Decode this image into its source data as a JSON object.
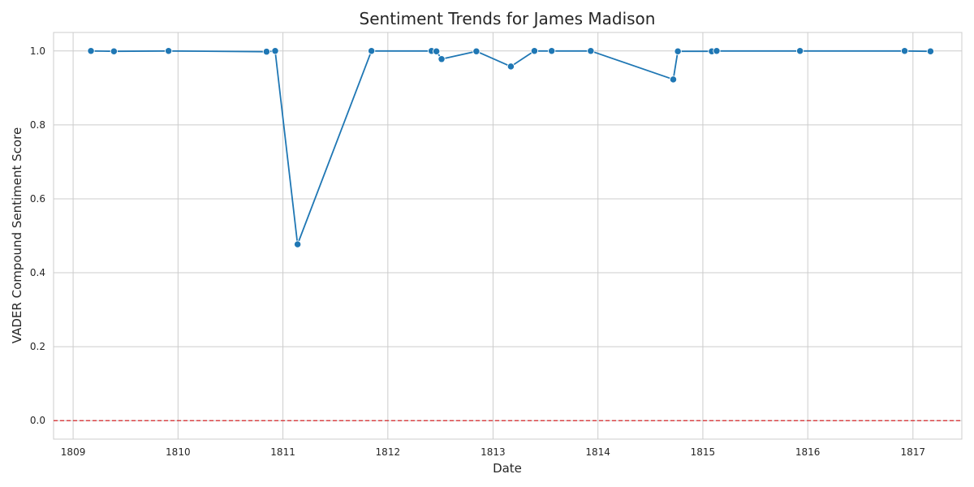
{
  "chart_data": {
    "type": "line",
    "title": "Sentiment Trends for James Madison",
    "xlabel": "Date",
    "ylabel": "VADER Compound Sentiment Score",
    "xlim": [
      "1808-10-25",
      "1817-06-20"
    ],
    "ylim": [
      -0.05,
      1.05
    ],
    "x_ticks": [
      {
        "label": "1809",
        "date": "1809-01-01"
      },
      {
        "label": "1810",
        "date": "1810-01-01"
      },
      {
        "label": "1811",
        "date": "1811-01-01"
      },
      {
        "label": "1812",
        "date": "1812-01-01"
      },
      {
        "label": "1813",
        "date": "1813-01-01"
      },
      {
        "label": "1814",
        "date": "1814-01-01"
      },
      {
        "label": "1815",
        "date": "1815-01-01"
      },
      {
        "label": "1816",
        "date": "1816-01-01"
      },
      {
        "label": "1817",
        "date": "1817-01-01"
      }
    ],
    "y_ticks": [
      0.0,
      0.2,
      0.4,
      0.6,
      0.8,
      1.0
    ],
    "y_tick_labels": [
      "0.0",
      "0.2",
      "0.4",
      "0.6",
      "0.8",
      "1.0"
    ],
    "grid": true,
    "series": [
      {
        "color": "#1f77b4",
        "x": [
          "1809-03-04",
          "1809-05-23",
          "1809-11-29",
          "1810-11-05",
          "1810-12-05",
          "1811-02-21",
          "1811-11-05",
          "1812-06-01",
          "1812-06-18",
          "1812-07-06",
          "1812-11-04",
          "1813-03-04",
          "1813-05-25",
          "1813-07-24",
          "1813-12-07",
          "1814-09-20",
          "1814-10-06",
          "1815-02-01",
          "1815-02-18",
          "1815-12-05",
          "1816-12-03",
          "1817-03-03"
        ],
        "y": [
          1.0,
          0.999,
          1.0,
          0.998,
          1.0,
          0.477,
          1.0,
          1.0,
          0.999,
          0.978,
          0.999,
          0.958,
          1.0,
          1.0,
          1.0,
          0.923,
          0.999,
          0.999,
          1.0,
          1.0,
          1.0,
          0.999
        ]
      }
    ],
    "reference_line": {
      "y": 0.0,
      "color": "#d62728",
      "style": "dashed"
    }
  }
}
